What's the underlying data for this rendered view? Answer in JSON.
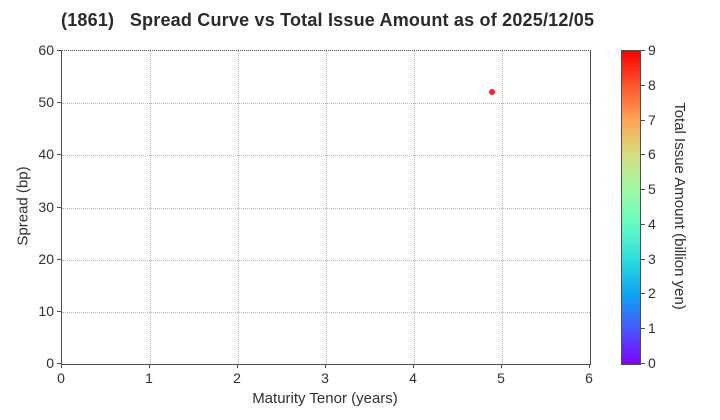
{
  "title": "(1861)   Spread Curve vs Total Issue Amount as of 2025/12/05",
  "chart_data": {
    "type": "scatter",
    "title": "(1861)   Spread Curve vs Total Issue Amount as of 2025/12/05",
    "xlabel": "Maturity Tenor (years)",
    "ylabel": "Spread (bp)",
    "xlim": [
      0,
      6
    ],
    "ylim": [
      0,
      60
    ],
    "x_ticks": [
      0,
      1,
      2,
      3,
      4,
      5,
      6
    ],
    "y_ticks": [
      0,
      10,
      20,
      30,
      40,
      50,
      60
    ],
    "grid": true,
    "grid_style": "dotted",
    "legend": "none",
    "points": [
      {
        "maturity_tenor_years": 4.9,
        "spread_bp": 52,
        "color": "#f8281c",
        "approx_issue_amount_billion_yen": 9
      }
    ],
    "colorbar": {
      "label": "Total Issue Amount (billion yen)",
      "min": 0,
      "max": 9,
      "ticks": [
        0,
        1,
        2,
        3,
        4,
        5,
        6,
        7,
        8,
        9
      ],
      "colormap": "rainbow",
      "gradient_stops": [
        "#8000ff",
        "#4757fb",
        "#0ea4f0",
        "#2bdddd",
        "#63fbc3",
        "#9cfba4",
        "#d5dd80",
        "#ffa457",
        "#ff572c",
        "#ff0000"
      ]
    }
  },
  "colors": {
    "background": "#ffffff",
    "text": "#303030",
    "spine": "#4d4d4d",
    "grid": "#b5b5b5",
    "marker": "#f8281c"
  }
}
